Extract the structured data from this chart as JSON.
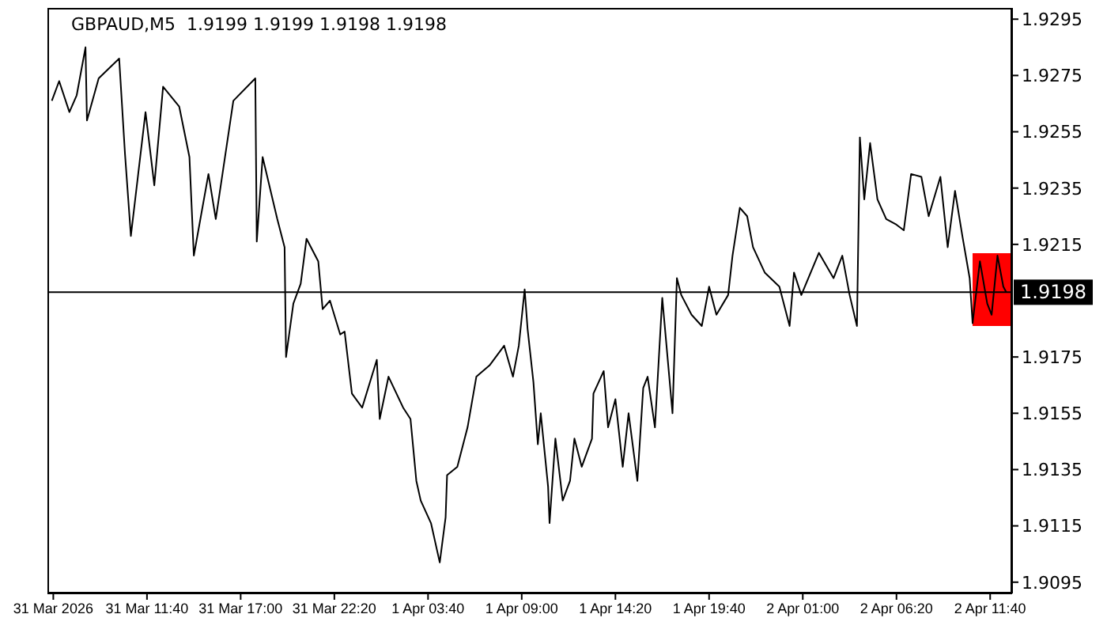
{
  "chart_data": {
    "type": "line",
    "title": "GBPAUD,M5  1.9199 1.9199 1.9198 1.9198",
    "marker": "none",
    "grid": false,
    "legend": false,
    "xlim": [
      "2026-03-31T06:00",
      "2026-04-02T12:55"
    ],
    "xticks": [
      {
        "value": "2026-03-31T06:20",
        "label": "31 Mar 2026"
      },
      {
        "value": "2026-03-31T11:40",
        "label": "31 Mar 11:40"
      },
      {
        "value": "2026-03-31T17:00",
        "label": "31 Mar 17:00"
      },
      {
        "value": "2026-03-31T22:20",
        "label": "31 Mar 22:20"
      },
      {
        "value": "2026-04-01T03:40",
        "label": "1 Apr 03:40"
      },
      {
        "value": "2026-04-01T09:00",
        "label": "1 Apr 09:00"
      },
      {
        "value": "2026-04-01T14:20",
        "label": "1 Apr 14:20"
      },
      {
        "value": "2026-04-01T19:40",
        "label": "1 Apr 19:40"
      },
      {
        "value": "2026-04-02T01:00",
        "label": "2 Apr 01:00"
      },
      {
        "value": "2026-04-02T06:20",
        "label": "2 Apr 06:20"
      },
      {
        "value": "2026-04-02T11:40",
        "label": "2 Apr 11:40"
      }
    ],
    "ylim": [
      1.9091,
      1.9299
    ],
    "yticks": [
      1.9095,
      1.9115,
      1.9135,
      1.9155,
      1.9175,
      1.9215,
      1.9235,
      1.9255,
      1.9275,
      1.9295
    ],
    "ref_lines": [
      {
        "axis": "y",
        "value": 1.9198,
        "label": "1.9198",
        "color": "#000000"
      }
    ],
    "series": [
      {
        "color": "#000000",
        "line_style": "solid",
        "x": [
          "2026-03-31T06:15",
          "2026-03-31T06:40",
          "2026-03-31T07:15",
          "2026-03-31T07:40",
          "2026-03-31T08:10",
          "2026-03-31T08:15",
          "2026-03-31T08:55",
          "2026-03-31T10:05",
          "2026-03-31T10:25",
          "2026-03-31T10:45",
          "2026-03-31T11:10",
          "2026-03-31T11:35",
          "2026-03-31T12:05",
          "2026-03-31T12:35",
          "2026-03-31T13:30",
          "2026-03-31T14:05",
          "2026-03-31T14:20",
          "2026-03-31T15:10",
          "2026-03-31T15:35",
          "2026-03-31T16:35",
          "2026-03-31T17:50",
          "2026-03-31T17:55",
          "2026-03-31T18:15",
          "2026-03-31T19:05",
          "2026-03-31T19:30",
          "2026-03-31T19:35",
          "2026-03-31T20:00",
          "2026-03-31T20:25",
          "2026-03-31T20:45",
          "2026-03-31T21:25",
          "2026-03-31T21:40",
          "2026-03-31T22:05",
          "2026-03-31T22:40",
          "2026-03-31T22:55",
          "2026-03-31T23:20",
          "2026-03-31T23:55",
          "2026-04-01T00:45",
          "2026-04-01T00:55",
          "2026-04-01T01:25",
          "2026-04-01T02:15",
          "2026-04-01T02:40",
          "2026-04-01T03:00",
          "2026-04-01T03:15",
          "2026-04-01T03:50",
          "2026-04-01T04:20",
          "2026-04-01T04:40",
          "2026-04-01T04:45",
          "2026-04-01T05:20",
          "2026-04-01T05:55",
          "2026-04-01T06:25",
          "2026-04-01T07:10",
          "2026-04-01T08:00",
          "2026-04-01T08:30",
          "2026-04-01T08:50",
          "2026-04-01T09:10",
          "2026-04-01T09:20",
          "2026-04-01T09:40",
          "2026-04-01T09:55",
          "2026-04-01T10:05",
          "2026-04-01T10:30",
          "2026-04-01T10:35",
          "2026-04-01T10:55",
          "2026-04-01T11:20",
          "2026-04-01T11:45",
          "2026-04-01T12:00",
          "2026-04-01T12:25",
          "2026-04-01T13:00",
          "2026-04-01T13:05",
          "2026-04-01T13:40",
          "2026-04-01T13:55",
          "2026-04-01T14:20",
          "2026-04-01T14:45",
          "2026-04-01T15:05",
          "2026-04-01T15:35",
          "2026-04-01T15:55",
          "2026-04-01T16:10",
          "2026-04-01T16:35",
          "2026-04-01T17:00",
          "2026-04-01T17:35",
          "2026-04-01T17:50",
          "2026-04-01T18:05",
          "2026-04-01T18:40",
          "2026-04-01T19:15",
          "2026-04-01T19:40",
          "2026-04-01T20:05",
          "2026-04-01T20:45",
          "2026-04-01T21:00",
          "2026-04-01T21:25",
          "2026-04-01T21:50",
          "2026-04-01T22:10",
          "2026-04-01T22:50",
          "2026-04-01T23:40",
          "2026-04-02T00:15",
          "2026-04-02T00:30",
          "2026-04-02T00:55",
          "2026-04-02T01:55",
          "2026-04-02T02:45",
          "2026-04-02T03:15",
          "2026-04-02T03:40",
          "2026-04-02T04:05",
          "2026-04-02T04:15",
          "2026-04-02T04:30",
          "2026-04-02T04:50",
          "2026-04-02T05:15",
          "2026-04-02T05:45",
          "2026-04-02T06:20",
          "2026-04-02T06:45",
          "2026-04-02T07:10",
          "2026-04-02T07:45",
          "2026-04-02T08:10",
          "2026-04-02T08:50",
          "2026-04-02T09:15",
          "2026-04-02T09:40",
          "2026-04-02T10:05",
          "2026-04-02T10:30",
          "2026-04-02T10:40",
          "2026-04-02T11:05",
          "2026-04-02T11:30",
          "2026-04-02T11:45",
          "2026-04-02T12:05",
          "2026-04-02T12:25",
          "2026-04-02T12:35"
        ],
        "values": [
          1.9266,
          1.9273,
          1.9262,
          1.9268,
          1.9285,
          1.9259,
          1.9274,
          1.9281,
          1.9247,
          1.9218,
          1.924,
          1.9262,
          1.9236,
          1.9271,
          1.9264,
          1.9246,
          1.9211,
          1.924,
          1.9224,
          1.9266,
          1.9274,
          1.9216,
          1.9246,
          1.9224,
          1.9214,
          1.9175,
          1.9194,
          1.9201,
          1.9217,
          1.9209,
          1.9192,
          1.9195,
          1.9183,
          1.9184,
          1.9162,
          1.9157,
          1.9174,
          1.9153,
          1.9168,
          1.9157,
          1.9153,
          1.9131,
          1.9124,
          1.9116,
          1.9102,
          1.9118,
          1.9133,
          1.9136,
          1.915,
          1.9168,
          1.9172,
          1.9179,
          1.9168,
          1.9179,
          1.9199,
          1.9185,
          1.9166,
          1.9144,
          1.9155,
          1.9129,
          1.9116,
          1.9146,
          1.9124,
          1.9131,
          1.9146,
          1.9136,
          1.9146,
          1.9162,
          1.917,
          1.915,
          1.916,
          1.9136,
          1.9155,
          1.9131,
          1.9164,
          1.9168,
          1.915,
          1.9196,
          1.9155,
          1.9203,
          1.9197,
          1.919,
          1.9186,
          1.92,
          1.919,
          1.9197,
          1.9211,
          1.9228,
          1.9225,
          1.9214,
          1.9205,
          1.92,
          1.9186,
          1.9205,
          1.9197,
          1.9212,
          1.9203,
          1.9211,
          1.9197,
          1.9186,
          1.9253,
          1.9231,
          1.9251,
          1.9231,
          1.9224,
          1.9222,
          1.922,
          1.924,
          1.9239,
          1.9225,
          1.9239,
          1.9214,
          1.9234,
          1.9218,
          1.9203,
          1.9187,
          1.9209,
          1.9194,
          1.919,
          1.9211,
          1.92,
          1.9198
        ]
      }
    ]
  }
}
